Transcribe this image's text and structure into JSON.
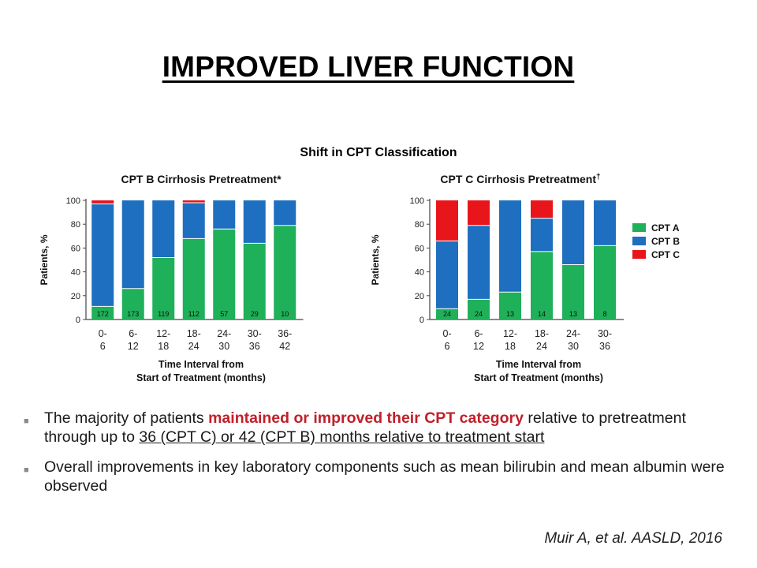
{
  "slide": {
    "title": "IMPROVED LIVER FUNCTION",
    "chart_group_title": "Shift in CPT Classification",
    "citation": "Muir A, et al. AASLD, 2016",
    "bullets": [
      {
        "pre": "The majority of patients ",
        "highlight": "maintained or improved their CPT category",
        "mid": " relative to pretreatment through up to ",
        "underlined": "36 (CPT C) or 42 (CPT B) months relative to treatment start",
        "post": ""
      },
      {
        "pre": "Overall improvements in key laboratory components such as mean bilirubin and mean albumin were observed",
        "highlight": "",
        "mid": "",
        "underlined": "",
        "post": ""
      }
    ]
  },
  "colors": {
    "cpt_a": "#1fb05a",
    "cpt_b": "#1f6fc0",
    "cpt_c": "#e8161b",
    "axis": "#444444"
  },
  "chart_data": [
    {
      "type": "bar",
      "stacked": true,
      "title": "CPT B Cirrhosis Pretreatment*",
      "xlabel": "Time Interval from Start of Treatment (months)",
      "ylabel": "Patients, %",
      "ylim": [
        0,
        100
      ],
      "yticks": [
        0,
        20,
        40,
        60,
        80,
        100
      ],
      "categories": [
        "0-6",
        "6-12",
        "12-18",
        "18-24",
        "24-30",
        "30-36",
        "36-42"
      ],
      "category_lines": [
        [
          "0-",
          "6"
        ],
        [
          "6-",
          "12"
        ],
        [
          "12-",
          "18"
        ],
        [
          "18-",
          "24"
        ],
        [
          "24-",
          "30"
        ],
        [
          "30-",
          "36"
        ],
        [
          "36-",
          "42"
        ]
      ],
      "n_labels": [
        "172",
        "173",
        "119",
        "112",
        "57",
        "29",
        "10"
      ],
      "series": [
        {
          "name": "CPT A",
          "color": "#1fb05a",
          "values": [
            11,
            26,
            52,
            68,
            76,
            64,
            79
          ]
        },
        {
          "name": "CPT B",
          "color": "#1f6fc0",
          "values": [
            86,
            74,
            48,
            30,
            24,
            36,
            21
          ]
        },
        {
          "name": "CPT C",
          "color": "#e8161b",
          "values": [
            3,
            0,
            0,
            2,
            0,
            0,
            0
          ]
        }
      ]
    },
    {
      "type": "bar",
      "stacked": true,
      "title": "CPT C Cirrhosis Pretreatment",
      "title_mark": "†",
      "xlabel": "Time Interval from Start of Treatment (months)",
      "ylabel": "Patients, %",
      "ylim": [
        0,
        100
      ],
      "yticks": [
        0,
        20,
        40,
        60,
        80,
        100
      ],
      "categories": [
        "0-6",
        "6-12",
        "12-18",
        "18-24",
        "24-30",
        "30-36"
      ],
      "category_lines": [
        [
          "0-",
          "6"
        ],
        [
          "6-",
          "12"
        ],
        [
          "12-",
          "18"
        ],
        [
          "18-",
          "24"
        ],
        [
          "24-",
          "30"
        ],
        [
          "30-",
          "36"
        ]
      ],
      "n_labels": [
        "24",
        "24",
        "13",
        "14",
        "13",
        "8"
      ],
      "legend": "right",
      "series": [
        {
          "name": "CPT A",
          "color": "#1fb05a",
          "values": [
            9,
            17,
            23,
            57,
            46,
            62
          ]
        },
        {
          "name": "CPT B",
          "color": "#1f6fc0",
          "values": [
            57,
            62,
            77,
            28,
            54,
            38
          ]
        },
        {
          "name": "CPT C",
          "color": "#e8161b",
          "values": [
            34,
            21,
            0,
            15,
            0,
            0
          ]
        }
      ]
    }
  ]
}
